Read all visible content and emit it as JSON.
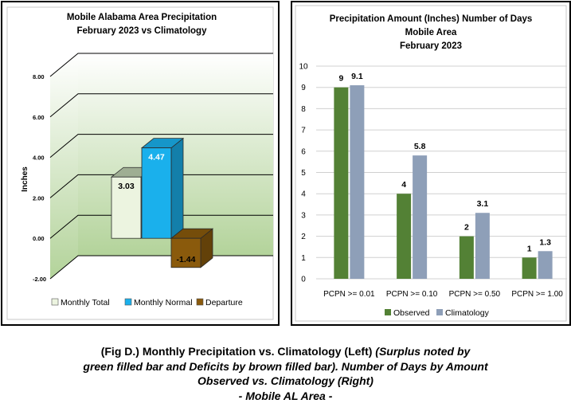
{
  "caption": {
    "lead": "(Fig D.) Monthly Precipitation vs. Climatology (Left)",
    "lead_italic": " (Surplus noted by",
    "line2": "green filled bar and Deficits by brown filled bar). Number of Days by Amount",
    "line3": "Observed vs. Climatology (Right)",
    "line4": "- Mobile AL Area -"
  },
  "colors": {
    "monthly_total": "#ecf4e0",
    "monthly_normal": "#1ab0ec",
    "departure": "#8a5a0c",
    "observed": "#538135",
    "climatology": "#8e9fb8",
    "plot_bg_top": "#ffffff",
    "plot_bg_bottom": "#b3d39a"
  },
  "chart_data": [
    {
      "type": "bar",
      "title": [
        "Mobile Alabama Area Precipitation",
        "February 2023 vs Climatology"
      ],
      "ylabel": "Inches",
      "ylim": [
        -2.0,
        8.0
      ],
      "yticks": [
        "8.00",
        "6.00",
        "4.00",
        "2.00",
        "0.00",
        "-2.00"
      ],
      "ytick_values": [
        8,
        6,
        4,
        2,
        0,
        -2
      ],
      "three_d": true,
      "series": [
        {
          "name": "Monthly Total",
          "value": 3.03,
          "label": "3.03"
        },
        {
          "name": "Monthly Normal",
          "value": 4.47,
          "label": "4.47"
        },
        {
          "name": "Departure",
          "value": -1.44,
          "label": "-1.44"
        }
      ],
      "legend": "bottom"
    },
    {
      "type": "bar",
      "title": [
        "Precipitation Amount (Inches) Number of Days",
        "Mobile Area",
        "February 2023"
      ],
      "categories": [
        "PCPN >= 0.01",
        "PCPN >= 0.10",
        "PCPN >= 0.50",
        "PCPN >= 1.00"
      ],
      "ylim": [
        0,
        10
      ],
      "yticks": [
        "10",
        "9",
        "8",
        "7",
        "6",
        "5",
        "4",
        "3",
        "2",
        "1",
        "0"
      ],
      "series": [
        {
          "name": "Observed",
          "values": [
            9,
            4,
            2,
            1
          ],
          "labels": [
            "9",
            "4",
            "2",
            "1"
          ]
        },
        {
          "name": "Climatology",
          "values": [
            9.1,
            5.8,
            3.1,
            1.3
          ],
          "labels": [
            "9.1",
            "5.8",
            "3.1",
            "1.3"
          ]
        }
      ],
      "grid": true,
      "legend": "bottom"
    }
  ]
}
